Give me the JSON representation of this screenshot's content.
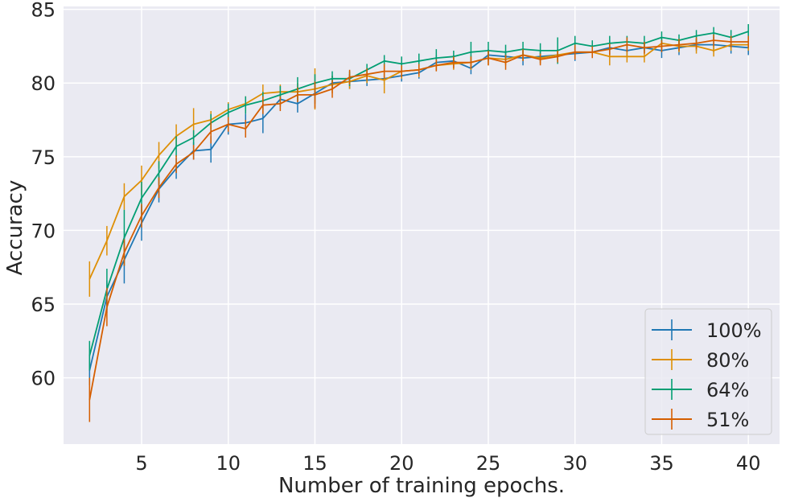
{
  "chart_data": {
    "type": "line",
    "title": "",
    "xlabel": "Number of training epochs.",
    "ylabel": "Accuracy",
    "xlim": [
      0.5,
      41.8
    ],
    "ylim": [
      55.5,
      85.2
    ],
    "xticks": [
      5,
      10,
      15,
      20,
      25,
      30,
      35,
      40
    ],
    "yticks": [
      60,
      65,
      70,
      75,
      80,
      85
    ],
    "grid": true,
    "legend_position": "bottom-right",
    "x": [
      2,
      3,
      4,
      5,
      6,
      7,
      8,
      9,
      10,
      11,
      12,
      13,
      14,
      15,
      16,
      17,
      18,
      19,
      20,
      21,
      22,
      23,
      24,
      25,
      26,
      27,
      28,
      29,
      30,
      31,
      32,
      33,
      34,
      35,
      36,
      37,
      38,
      39,
      40
    ],
    "series": [
      {
        "name": "100%",
        "color": "#1f77b4",
        "values": [
          60.5,
          65.5,
          68.0,
          70.5,
          72.8,
          74.2,
          75.4,
          75.5,
          77.2,
          77.3,
          77.6,
          78.9,
          78.6,
          79.3,
          80.0,
          80.1,
          80.2,
          80.3,
          80.5,
          80.7,
          81.4,
          81.5,
          81.0,
          81.9,
          81.8,
          81.7,
          81.8,
          81.9,
          82.0,
          82.1,
          82.4,
          82.2,
          82.4,
          82.2,
          82.4,
          82.6,
          82.6,
          82.5,
          82.4
        ],
        "errors": [
          1.0,
          1.1,
          1.6,
          1.2,
          0.9,
          0.7,
          0.6,
          0.9,
          0.7,
          0.6,
          1.0,
          0.5,
          0.6,
          0.7,
          0.5,
          0.5,
          0.4,
          0.4,
          0.4,
          0.4,
          0.5,
          0.4,
          0.4,
          0.4,
          0.4,
          0.5,
          0.4,
          0.4,
          0.5,
          0.4,
          0.5,
          0.4,
          0.4,
          0.5,
          0.5,
          0.4,
          0.5,
          0.5,
          0.5
        ]
      },
      {
        "name": "80%",
        "color": "#de8f05",
        "values": [
          66.7,
          69.3,
          72.3,
          73.4,
          75.1,
          76.4,
          77.2,
          77.5,
          78.2,
          78.6,
          79.3,
          79.4,
          79.4,
          79.6,
          79.9,
          80.1,
          80.5,
          80.2,
          80.8,
          80.9,
          81.2,
          81.3,
          81.4,
          81.7,
          81.6,
          81.9,
          81.7,
          81.9,
          82.1,
          82.1,
          81.8,
          81.8,
          81.8,
          82.7,
          82.5,
          82.5,
          82.2,
          82.6,
          82.6
        ],
        "errors": [
          1.2,
          1.0,
          0.9,
          1.0,
          0.9,
          0.8,
          1.1,
          0.6,
          0.5,
          0.5,
          0.6,
          0.5,
          0.6,
          1.4,
          0.6,
          0.5,
          0.5,
          0.9,
          0.5,
          0.5,
          0.4,
          0.4,
          0.5,
          0.5,
          0.4,
          0.4,
          0.4,
          0.4,
          0.4,
          0.4,
          0.6,
          0.4,
          0.4,
          0.4,
          0.4,
          0.5,
          0.4,
          0.4,
          0.4
        ]
      },
      {
        "name": "64%",
        "color": "#029e73",
        "values": [
          61.5,
          66.0,
          69.5,
          72.2,
          73.9,
          75.7,
          76.3,
          77.3,
          78.0,
          78.5,
          78.8,
          79.2,
          79.6,
          80.0,
          80.3,
          80.3,
          80.9,
          81.5,
          81.3,
          81.5,
          81.7,
          81.8,
          82.1,
          82.2,
          82.1,
          82.3,
          82.2,
          82.2,
          82.7,
          82.5,
          82.7,
          82.8,
          82.7,
          83.1,
          82.9,
          83.2,
          83.4,
          83.1,
          83.5
        ],
        "errors": [
          1.0,
          1.4,
          1.9,
          1.1,
          0.8,
          0.7,
          0.5,
          0.6,
          0.6,
          0.6,
          0.6,
          0.6,
          0.8,
          0.6,
          0.5,
          0.5,
          0.4,
          0.4,
          0.5,
          0.5,
          0.6,
          0.4,
          0.7,
          0.6,
          0.5,
          0.5,
          0.5,
          0.9,
          0.5,
          0.4,
          0.5,
          0.4,
          0.5,
          0.4,
          0.4,
          0.4,
          0.4,
          0.5,
          0.5
        ]
      },
      {
        "name": "51%",
        "color": "#d55e00",
        "values": [
          58.5,
          64.8,
          68.5,
          71.0,
          72.9,
          74.5,
          75.3,
          76.7,
          77.2,
          76.9,
          78.5,
          78.6,
          79.2,
          79.2,
          79.6,
          80.4,
          80.6,
          80.8,
          80.8,
          80.9,
          81.2,
          81.4,
          81.4,
          81.7,
          81.4,
          81.9,
          81.6,
          81.8,
          82.1,
          82.1,
          82.3,
          82.6,
          82.4,
          82.5,
          82.6,
          82.7,
          82.9,
          82.8,
          82.8
        ],
        "errors": [
          1.5,
          1.3,
          0.9,
          0.8,
          0.7,
          0.6,
          0.5,
          0.8,
          0.5,
          0.6,
          0.6,
          0.5,
          0.5,
          0.9,
          0.6,
          0.5,
          0.4,
          0.5,
          0.4,
          0.4,
          0.4,
          0.4,
          0.4,
          0.5,
          0.5,
          0.4,
          0.4,
          0.4,
          0.5,
          0.4,
          0.4,
          0.5,
          0.4,
          0.4,
          0.4,
          0.4,
          0.4,
          0.4,
          0.4
        ]
      }
    ]
  }
}
